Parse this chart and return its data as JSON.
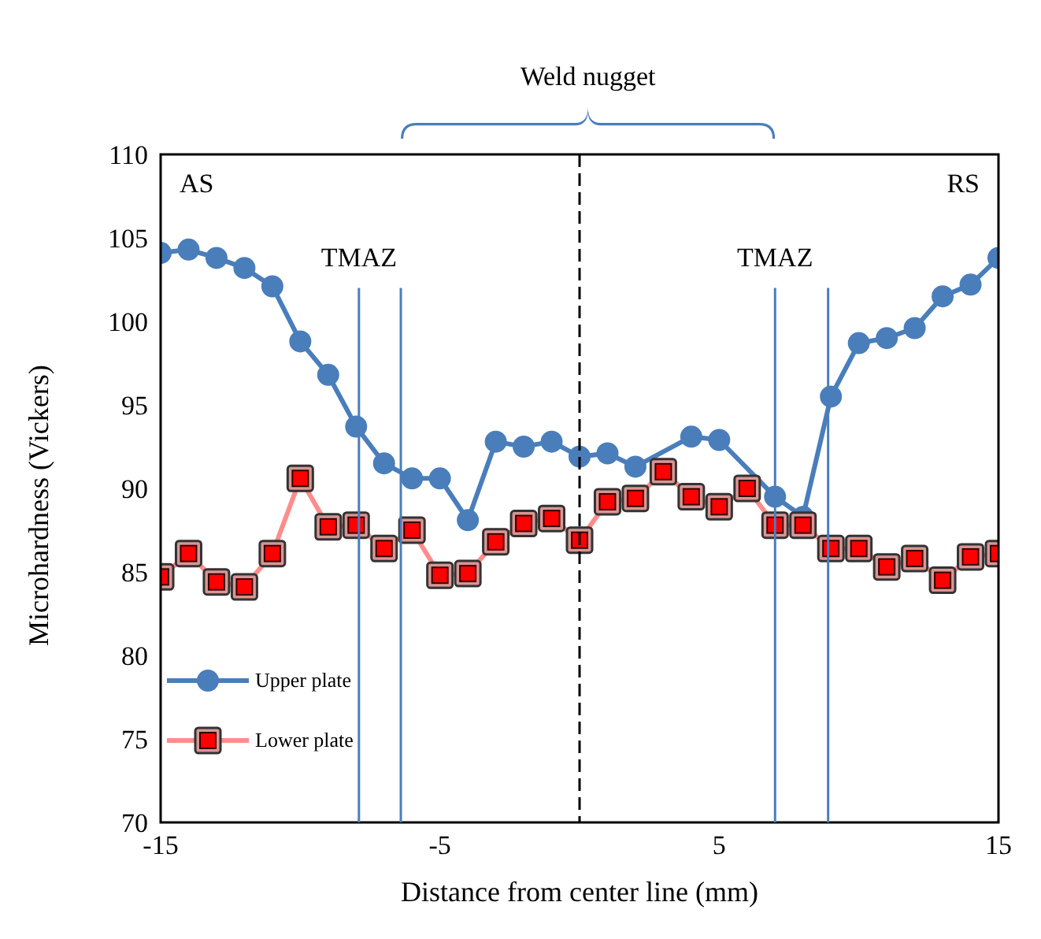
{
  "chart_data": {
    "type": "line",
    "xlabel": "Distance from center line (mm)",
    "ylabel": "Microhardness (Vickers)",
    "x": [
      -15,
      -14,
      -13,
      -12,
      -11,
      -10,
      -9,
      -8,
      -7,
      -6,
      -5,
      -4,
      -3,
      -2,
      -1,
      0,
      1,
      2,
      3,
      4,
      5,
      6,
      7,
      8,
      9,
      10,
      11,
      12,
      13,
      14,
      15
    ],
    "series": [
      {
        "name": "Upper plate",
        "color": "#4a7ebb",
        "marker": "circle",
        "values": [
          104.1,
          104.3,
          103.8,
          103.2,
          102.1,
          98.8,
          96.8,
          93.7,
          91.5,
          90.6,
          90.6,
          88.1,
          92.8,
          92.5,
          92.8,
          91.9,
          92.1,
          91.3,
          null,
          93.1,
          92.9,
          null,
          89.5,
          88.3,
          95.5,
          98.7,
          99.0,
          99.6,
          101.5,
          102.2,
          103.8
        ]
      },
      {
        "name": "Lower plate",
        "color": "#ff0000",
        "marker": "square",
        "values": [
          84.7,
          86.1,
          84.4,
          84.1,
          86.1,
          90.6,
          87.7,
          87.8,
          86.4,
          87.5,
          84.8,
          84.9,
          86.8,
          87.9,
          88.2,
          86.9,
          89.2,
          89.4,
          91.0,
          89.5,
          88.9,
          90.0,
          87.8,
          87.8,
          86.4,
          86.4,
          85.3,
          85.8,
          84.5,
          85.9,
          86.1
        ]
      }
    ],
    "xlim": [
      -15,
      15
    ],
    "xticks": [
      -15,
      -5,
      5,
      15
    ],
    "ylim": [
      70,
      110
    ],
    "yticks": [
      70,
      75,
      80,
      85,
      90,
      95,
      100,
      105,
      110
    ],
    "grid": false,
    "legend": "bottom left",
    "line_style": "solid",
    "ref_lines": [
      {
        "axis": "x",
        "value": -7.9,
        "label": "TMAZ",
        "color": "#4a7ebb",
        "line_style": "solid"
      },
      {
        "axis": "x",
        "value": -6.4,
        "color": "#4a7ebb",
        "line_style": "solid"
      },
      {
        "axis": "x",
        "value": 7,
        "label": "TMAZ",
        "color": "#4a7ebb",
        "line_style": "solid"
      },
      {
        "axis": "x",
        "value": 8.9,
        "color": "#4a7ebb",
        "line_style": "solid"
      },
      {
        "axis": "x",
        "value": 0,
        "color": "#000000",
        "line_style": "dashed"
      }
    ],
    "annotations": [
      "AS",
      "RS",
      "Weld nugget"
    ]
  }
}
